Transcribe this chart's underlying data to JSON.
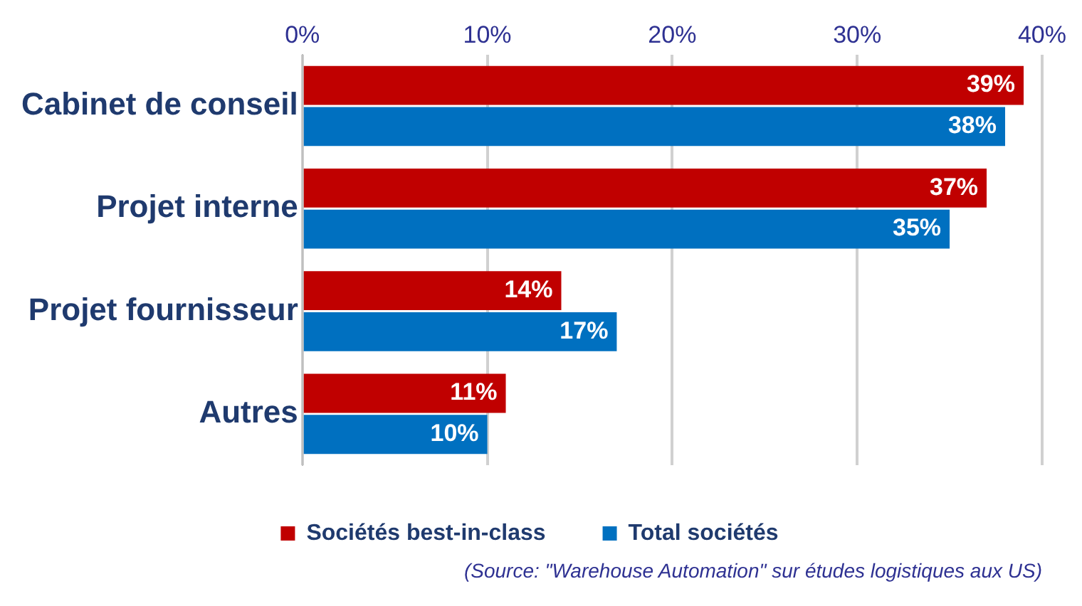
{
  "chart_data": {
    "type": "bar",
    "orientation": "horizontal",
    "categories": [
      "Cabinet de conseil",
      "Projet interne",
      "Projet fournisseur",
      "Autres"
    ],
    "series": [
      {
        "name": "Sociétés best-in-class",
        "color": "#c00000",
        "values": [
          39,
          37,
          14,
          11
        ],
        "value_labels": [
          "39%",
          "37%",
          "14%",
          "11%"
        ]
      },
      {
        "name": "Total sociétés",
        "color": "#0070c0",
        "values": [
          38,
          35,
          17,
          10
        ],
        "value_labels": [
          "38%",
          "35%",
          "17%",
          "10%"
        ]
      }
    ],
    "xlim": [
      0,
      40
    ],
    "xticks": [
      {
        "value": 0,
        "label": "0%"
      },
      {
        "value": 10,
        "label": "10%"
      },
      {
        "value": 20,
        "label": "20%"
      },
      {
        "value": 30,
        "label": "30%"
      },
      {
        "value": 40,
        "label": "40%"
      }
    ],
    "grid": "x",
    "legend": "bottom",
    "annotations": [
      "(Source: \"Warehouse Automation\" sur études logistiques aux US)"
    ]
  }
}
